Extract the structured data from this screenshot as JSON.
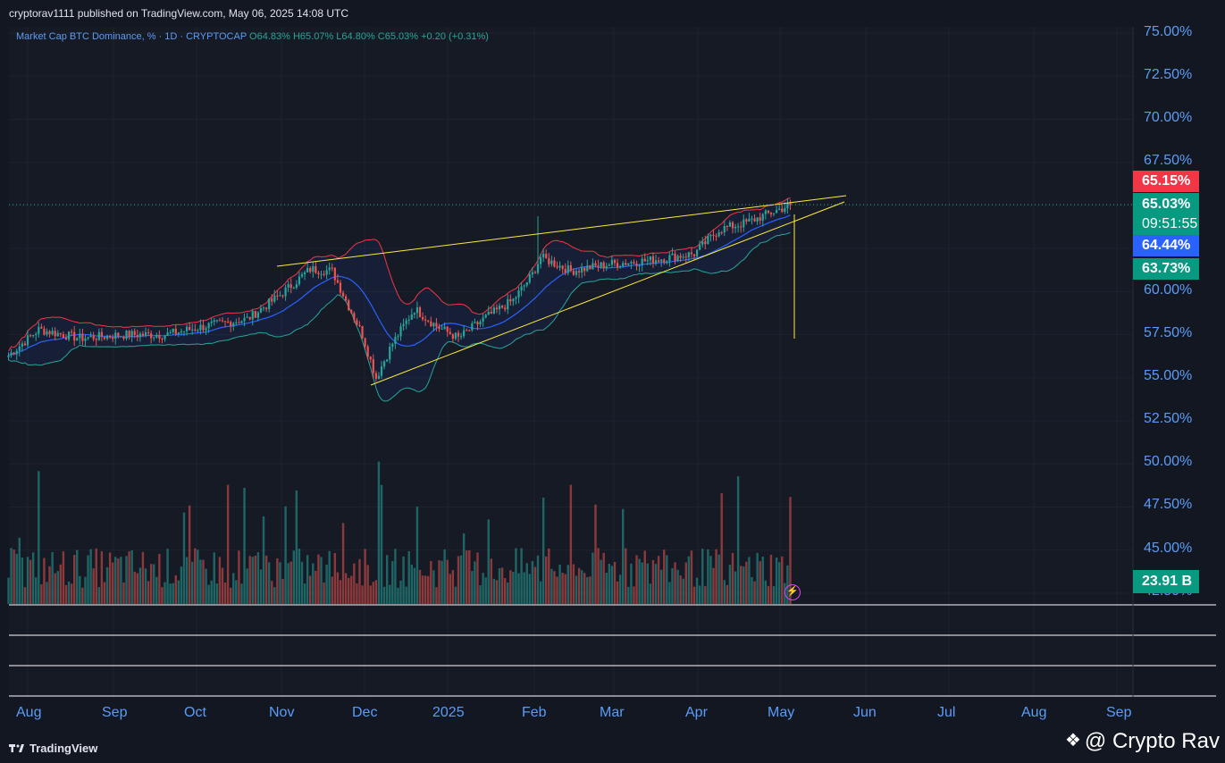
{
  "header": {
    "published": "cryptorav1111 published on TradingView.com, May 06, 2025 14:08 UTC"
  },
  "legend": {
    "symbol": "Market Cap BTC Dominance, % · 1D · CRYPTOCAP",
    "open": "O64.83%",
    "high": "H65.07%",
    "low": "L64.80%",
    "close": "C65.03%",
    "change": "+0.20 (+0.31%)"
  },
  "price_axis": [
    "75.00%",
    "72.50%",
    "70.00%",
    "67.50%",
    "60.00%",
    "57.50%",
    "55.00%",
    "52.50%",
    "50.00%",
    "47.50%",
    "45.00%",
    "42.50%"
  ],
  "time_axis": [
    "Aug",
    "Sep",
    "Oct",
    "Nov",
    "Dec",
    "2025",
    "Feb",
    "Mar",
    "Apr",
    "May",
    "Jun",
    "Jul",
    "Aug",
    "Sep"
  ],
  "price_labels": {
    "upper_band": "65.15%",
    "last_price": "65.03%",
    "countdown": "09:51:55",
    "middle_band": "64.44%",
    "lower_band": "63.73%",
    "volume": "23.91 B"
  },
  "footer": {
    "brand": "TradingView",
    "watermark": "@ Crypto Rav"
  },
  "colors": {
    "up": "#26a69a",
    "down": "#ef5350",
    "band_upper": "#f23645",
    "band_lower": "#26a69a",
    "basis": "#2962ff",
    "trendline": "#ffeb3b",
    "axis_text": "#5b9cf6"
  },
  "chart_data": {
    "type": "candlestick",
    "title": "Market Cap BTC Dominance, % · 1D · CRYPTOCAP",
    "ylim": [
      41.5,
      75.5
    ],
    "price_path": [
      {
        "date": "2024-07-25",
        "value": 56.3
      },
      {
        "date": "2024-08-05",
        "value": 57.8
      },
      {
        "date": "2024-08-20",
        "value": 57.3
      },
      {
        "date": "2024-09-05",
        "value": 57.5
      },
      {
        "date": "2024-09-20",
        "value": 57.5
      },
      {
        "date": "2024-10-05",
        "value": 58.0
      },
      {
        "date": "2024-10-20",
        "value": 58.4
      },
      {
        "date": "2024-11-01",
        "value": 59.8
      },
      {
        "date": "2024-11-12",
        "value": 61.3
      },
      {
        "date": "2024-11-20",
        "value": 61.2
      },
      {
        "date": "2024-11-25",
        "value": 59.5
      },
      {
        "date": "2024-12-01",
        "value": 57.5
      },
      {
        "date": "2024-12-06",
        "value": 55.0
      },
      {
        "date": "2024-12-12",
        "value": 57.0
      },
      {
        "date": "2024-12-20",
        "value": 59.0
      },
      {
        "date": "2024-12-28",
        "value": 58.0
      },
      {
        "date": "2025-01-05",
        "value": 57.3
      },
      {
        "date": "2025-01-15",
        "value": 58.5
      },
      {
        "date": "2025-01-25",
        "value": 59.5
      },
      {
        "date": "2025-02-01",
        "value": 61.0
      },
      {
        "date": "2025-02-04",
        "value": 62.0
      },
      {
        "date": "2025-02-15",
        "value": 61.2
      },
      {
        "date": "2025-03-01",
        "value": 61.6
      },
      {
        "date": "2025-03-15",
        "value": 61.8
      },
      {
        "date": "2025-04-01",
        "value": 62.2
      },
      {
        "date": "2025-04-10",
        "value": 63.6
      },
      {
        "date": "2025-04-20",
        "value": 64.0
      },
      {
        "date": "2025-05-06",
        "value": 65.03
      }
    ],
    "bollinger_last": {
      "upper": 65.15,
      "basis": 64.44,
      "lower": 63.73
    },
    "last_volume": "23.91 B"
  }
}
